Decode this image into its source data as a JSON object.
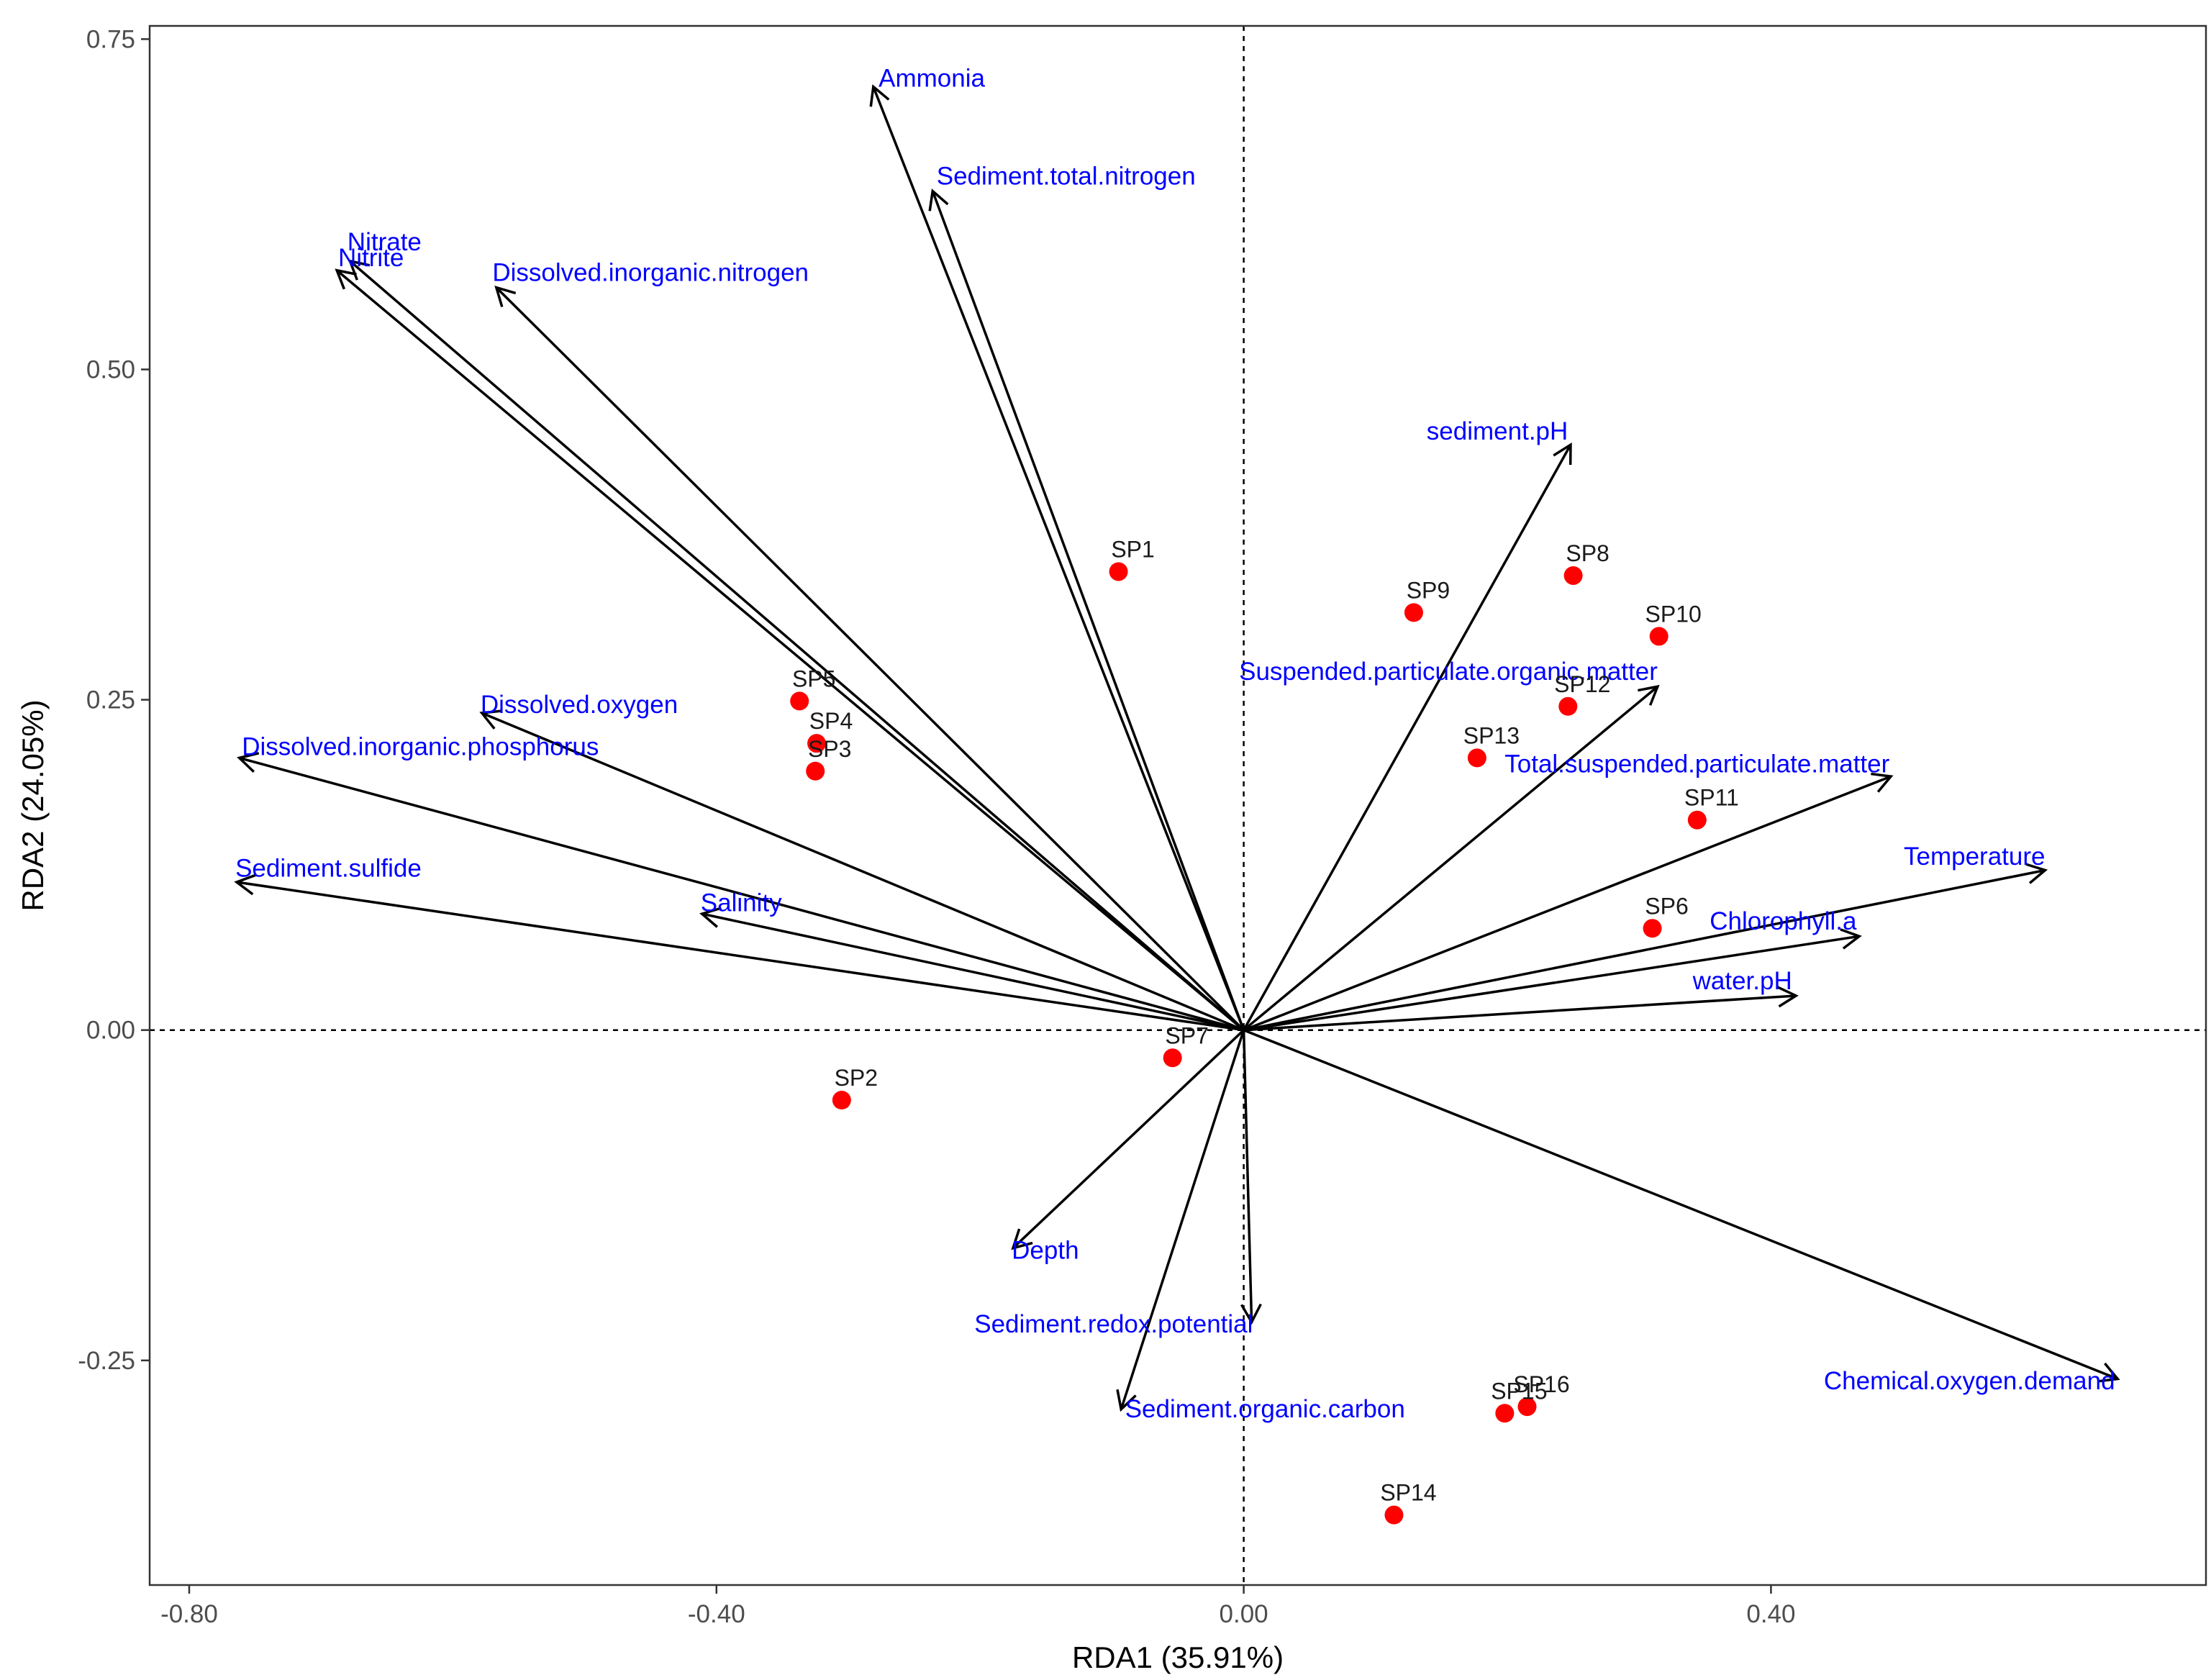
{
  "chart_data": {
    "type": "scatter",
    "subtype": "RDA biplot",
    "title": "",
    "xlabel": "RDA1 (35.91%)",
    "ylabel": "RDA2 (24.05%)",
    "xlim": [
      -0.83,
      0.73
    ],
    "ylim": [
      -0.42,
      0.76
    ],
    "xticks": [
      -0.8,
      -0.4,
      0.0,
      0.4
    ],
    "xtick_labels": [
      "-0.80",
      "-0.40",
      "0.00",
      "0.40"
    ],
    "yticks": [
      -0.25,
      0.0,
      0.25,
      0.5,
      0.75
    ],
    "ytick_labels": [
      "-0.25",
      "0.00",
      "0.25",
      "0.50",
      "0.75"
    ],
    "reference_lines": {
      "x": 0,
      "y": 0,
      "style": "dashed"
    },
    "grid": false,
    "colors": {
      "sites": "#ff0000",
      "arrows": "#000000",
      "env_labels": "#0000ff",
      "site_labels": "#1a1a1a",
      "frame": "#333333"
    },
    "sites": [
      {
        "label": "SP1",
        "x": -0.095,
        "y": 0.347
      },
      {
        "label": "SP2",
        "x": -0.305,
        "y": -0.053
      },
      {
        "label": "SP3",
        "x": -0.325,
        "y": 0.196
      },
      {
        "label": "SP4",
        "x": -0.324,
        "y": 0.217
      },
      {
        "label": "SP5",
        "x": -0.337,
        "y": 0.249
      },
      {
        "label": "SP6",
        "x": 0.31,
        "y": 0.077
      },
      {
        "label": "SP7",
        "x": -0.054,
        "y": -0.021
      },
      {
        "label": "SP8",
        "x": 0.25,
        "y": 0.344
      },
      {
        "label": "SP9",
        "x": 0.129,
        "y": 0.316
      },
      {
        "label": "SP10",
        "x": 0.315,
        "y": 0.298
      },
      {
        "label": "SP11",
        "x": 0.344,
        "y": 0.159
      },
      {
        "label": "SP12",
        "x": 0.246,
        "y": 0.245
      },
      {
        "label": "SP13",
        "x": 0.177,
        "y": 0.206
      },
      {
        "label": "SP14",
        "x": 0.114,
        "y": -0.367
      },
      {
        "label": "SP15",
        "x": 0.198,
        "y": -0.29
      },
      {
        "label": "SP16",
        "x": 0.215,
        "y": -0.285
      }
    ],
    "vectors": [
      {
        "label": "Ammonia",
        "x": -0.281,
        "y": 0.714,
        "anchor": "start",
        "lx": -0.277,
        "ly": 0.714
      },
      {
        "label": "Sediment.total.nitrogen",
        "x": -0.236,
        "y": 0.635,
        "anchor": "start",
        "lx": -0.233,
        "ly": 0.64
      },
      {
        "label": "Nitrate",
        "x": -0.678,
        "y": 0.582,
        "anchor": "start",
        "lx": -0.68,
        "ly": 0.59
      },
      {
        "label": "Nitrite",
        "x": -0.688,
        "y": 0.575,
        "anchor": "start",
        "lx": -0.687,
        "ly": 0.578
      },
      {
        "label": "Dissolved.inorganic.nitrogen",
        "x": -0.567,
        "y": 0.562,
        "anchor": "start",
        "lx": -0.57,
        "ly": 0.567
      },
      {
        "label": "sediment.pH",
        "x": 0.248,
        "y": 0.443,
        "anchor": "end",
        "lx": 0.246,
        "ly": 0.447
      },
      {
        "label": "Suspended.particulate.organic.matter",
        "x": 0.314,
        "y": 0.26,
        "anchor": "end",
        "lx": 0.314,
        "ly": 0.265
      },
      {
        "label": "Dissolved.oxygen",
        "x": -0.578,
        "y": 0.24,
        "anchor": "start",
        "lx": -0.579,
        "ly": 0.24
      },
      {
        "label": "Dissolved.inorganic.phosphorus",
        "x": -0.762,
        "y": 0.206,
        "anchor": "start",
        "lx": -0.76,
        "ly": 0.208
      },
      {
        "label": "Total.suspended.particulate.matter",
        "x": 0.491,
        "y": 0.192,
        "anchor": "end",
        "lx": 0.49,
        "ly": 0.195
      },
      {
        "label": "Temperature",
        "x": 0.608,
        "y": 0.121,
        "anchor": "end",
        "lx": 0.608,
        "ly": 0.125
      },
      {
        "label": "Sediment.sulfide",
        "x": -0.764,
        "y": 0.112,
        "anchor": "start",
        "lx": -0.765,
        "ly": 0.116
      },
      {
        "label": "Salinity",
        "x": -0.411,
        "y": 0.088,
        "anchor": "start",
        "lx": -0.412,
        "ly": 0.09
      },
      {
        "label": "Chlorophyll.a",
        "x": 0.467,
        "y": 0.071,
        "anchor": "end",
        "lx": 0.465,
        "ly": 0.076
      },
      {
        "label": "water.pH",
        "x": 0.419,
        "y": 0.026,
        "anchor": "end",
        "lx": 0.416,
        "ly": 0.031
      },
      {
        "label": "Depth",
        "x": -0.175,
        "y": -0.165,
        "anchor": "start",
        "lx": -0.176,
        "ly": -0.173
      },
      {
        "label": "Sediment.redox.potential",
        "x": 0.006,
        "y": -0.221,
        "anchor": "end",
        "lx": 0.007,
        "ly": -0.229
      },
      {
        "label": "Sediment.organic.carbon",
        "x": -0.093,
        "y": -0.287,
        "anchor": "start",
        "lx": -0.09,
        "ly": -0.293
      },
      {
        "label": "Chemical.oxygen.demand",
        "x": 0.663,
        "y": -0.264,
        "anchor": "end",
        "lx": 0.661,
        "ly": -0.272
      }
    ]
  }
}
